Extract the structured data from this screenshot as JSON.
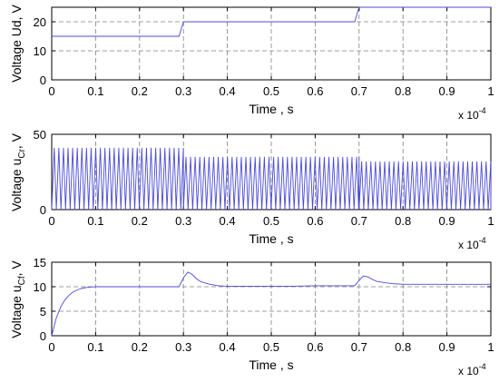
{
  "chart_data": [
    {
      "type": "line",
      "title": "",
      "xlabel": "Time , s",
      "ylabel": "Voltage Ud, V",
      "x_exponent": {
        "base": "x 10",
        "power": "-4"
      },
      "xlim": [
        0,
        1
      ],
      "ylim": [
        0,
        25
      ],
      "xticks": [
        0,
        0.1,
        0.2,
        0.3,
        0.4,
        0.5,
        0.6,
        0.7,
        0.8,
        0.9,
        1
      ],
      "yticks": [
        0,
        10,
        20
      ],
      "xtick_labels": [
        "0",
        "0.1",
        "0.2",
        "0.3",
        "0.4",
        "0.5",
        "0.6",
        "0.7",
        "0.8",
        "0.9",
        "1"
      ],
      "ytick_labels": [
        "0",
        "10",
        "20"
      ],
      "grid": true,
      "line_color": "#4b4bd8",
      "series": [
        {
          "x": [
            0,
            0.29,
            0.3,
            0.69,
            0.7,
            1.0
          ],
          "y": [
            15,
            15,
            20,
            20,
            25,
            25
          ]
        }
      ]
    },
    {
      "type": "line",
      "title": "",
      "xlabel": "Time , s",
      "ylabel": "Voltage u",
      "ylabel_sub": "Cr",
      "ylabel_suffix": ", V",
      "x_exponent": {
        "base": "x 10",
        "power": "-4"
      },
      "xlim": [
        0,
        1
      ],
      "ylim": [
        0,
        50
      ],
      "xticks": [
        0,
        0.1,
        0.2,
        0.3,
        0.4,
        0.5,
        0.6,
        0.7,
        0.8,
        0.9,
        1
      ],
      "yticks": [
        0,
        50
      ],
      "xtick_labels": [
        "0",
        "0.1",
        "0.2",
        "0.3",
        "0.4",
        "0.5",
        "0.6",
        "0.7",
        "0.8",
        "0.9",
        "1"
      ],
      "ytick_labels": [
        "0",
        "50"
      ],
      "grid": true,
      "line_color": "#4b4bd8",
      "oscillation": {
        "period": 0.0105,
        "segments": [
          {
            "x0": 0,
            "x1": 0.3,
            "peak": 41
          },
          {
            "x0": 0.3,
            "x1": 0.7,
            "peak": 35
          },
          {
            "x0": 0.7,
            "x1": 1.0,
            "peak": 32
          }
        ],
        "trough": 0
      }
    },
    {
      "type": "line",
      "title": "",
      "xlabel": "Time , s",
      "ylabel": "Voltage u",
      "ylabel_sub": "Cf",
      "ylabel_suffix": ", V",
      "x_exponent": {
        "base": "x 10",
        "power": "-4"
      },
      "xlim": [
        0,
        1
      ],
      "ylim": [
        0,
        15
      ],
      "xticks": [
        0,
        0.1,
        0.2,
        0.3,
        0.4,
        0.5,
        0.6,
        0.7,
        0.8,
        0.9,
        1
      ],
      "yticks": [
        0,
        5,
        10,
        15
      ],
      "xtick_labels": [
        "0",
        "0.1",
        "0.2",
        "0.3",
        "0.4",
        "0.5",
        "0.6",
        "0.7",
        "0.8",
        "0.9",
        "1"
      ],
      "ytick_labels": [
        "0",
        "5",
        "10",
        "15"
      ],
      "grid": true,
      "line_color": "#4b4bd8",
      "series": [
        {
          "x": [
            0,
            0.01,
            0.02,
            0.03,
            0.04,
            0.05,
            0.06,
            0.07,
            0.08,
            0.09,
            0.1,
            0.15,
            0.2,
            0.25,
            0.29,
            0.3,
            0.31,
            0.32,
            0.33,
            0.34,
            0.36,
            0.38,
            0.4,
            0.45,
            0.5,
            0.55,
            0.6,
            0.65,
            0.69,
            0.7,
            0.71,
            0.72,
            0.73,
            0.74,
            0.76,
            0.78,
            0.8,
            0.85,
            0.9,
            0.95,
            1.0
          ],
          "y": [
            0,
            3.5,
            5.8,
            7.3,
            8.3,
            9.0,
            9.4,
            9.7,
            9.85,
            9.95,
            10.0,
            10.0,
            10.0,
            10.0,
            10.0,
            11.8,
            13.0,
            12.5,
            11.6,
            11.0,
            10.5,
            10.2,
            10.1,
            10.1,
            10.1,
            10.1,
            10.2,
            10.2,
            10.2,
            11.3,
            12.2,
            12.0,
            11.5,
            11.1,
            10.8,
            10.6,
            10.5,
            10.5,
            10.5,
            10.5,
            10.5
          ]
        }
      ]
    }
  ]
}
